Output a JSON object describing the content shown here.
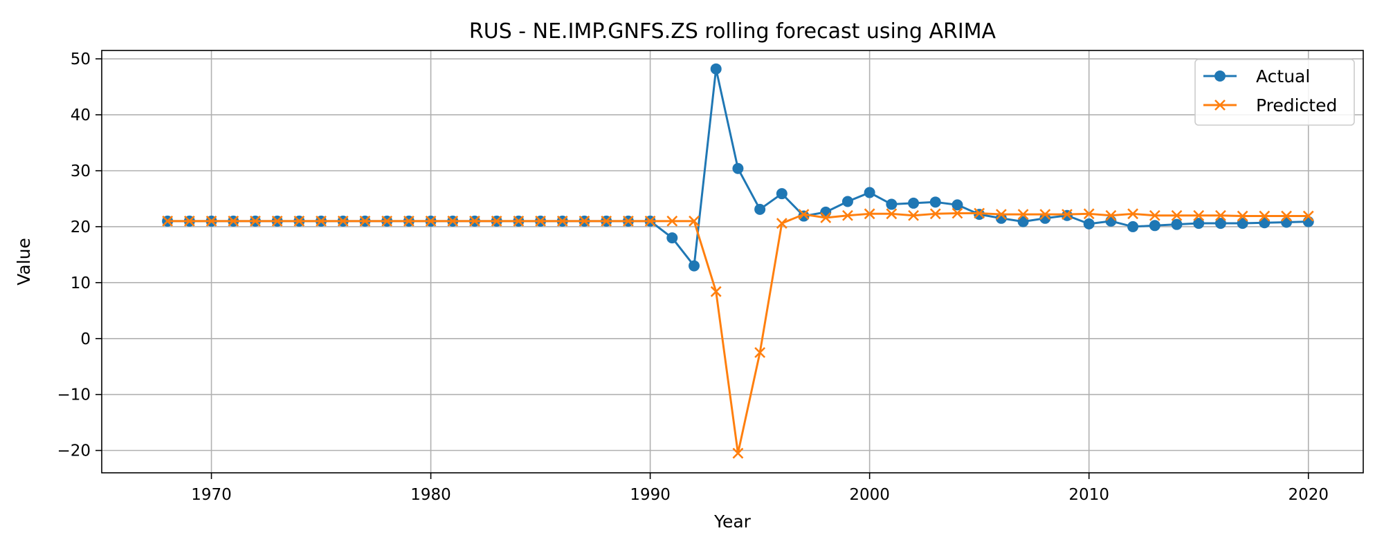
{
  "chart_data": {
    "type": "line",
    "title": "RUS - NE.IMP.GNFS.ZS rolling forecast using ARIMA",
    "xlabel": "Year",
    "ylabel": "Value",
    "xlim": [
      1965,
      2022.5
    ],
    "ylim": [
      -24,
      51.5
    ],
    "xticks": [
      1970,
      1980,
      1990,
      2000,
      2010,
      2020
    ],
    "yticks": [
      -20,
      -10,
      0,
      10,
      20,
      30,
      40,
      50
    ],
    "grid": true,
    "legend_position": "top-right",
    "x": [
      1968,
      1969,
      1970,
      1971,
      1972,
      1973,
      1974,
      1975,
      1976,
      1977,
      1978,
      1979,
      1980,
      1981,
      1982,
      1983,
      1984,
      1985,
      1986,
      1987,
      1988,
      1989,
      1990,
      1991,
      1992,
      1993,
      1994,
      1995,
      1996,
      1997,
      1998,
      1999,
      2000,
      2001,
      2002,
      2003,
      2004,
      2005,
      2006,
      2007,
      2008,
      2009,
      2010,
      2011,
      2012,
      2013,
      2014,
      2015,
      2016,
      2017,
      2018,
      2019,
      2020
    ],
    "series": [
      {
        "name": "Actual",
        "color": "#1f77b4",
        "marker": "circle",
        "values": [
          21,
          21,
          21,
          21,
          21,
          21,
          21,
          21,
          21,
          21,
          21,
          21,
          21,
          21,
          21,
          21,
          21,
          21,
          21,
          21,
          21,
          21,
          21,
          18,
          13,
          48.2,
          30.4,
          23.1,
          25.9,
          21.9,
          22.6,
          24.5,
          26.1,
          24.0,
          24.2,
          24.4,
          23.9,
          22.2,
          21.5,
          20.9,
          21.5,
          22.0,
          20.5,
          21.0,
          20.0,
          20.2,
          20.4,
          20.6,
          20.6,
          20.6,
          20.7,
          20.8,
          20.9
        ]
      },
      {
        "name": "Predicted",
        "color": "#ff7f0e",
        "marker": "x",
        "values": [
          21,
          21,
          21,
          21,
          21,
          21,
          21,
          21,
          21,
          21,
          21,
          21,
          21,
          21,
          21,
          21,
          21,
          21,
          21,
          21,
          21,
          21,
          21,
          21,
          21,
          8.4,
          -20.5,
          -2.5,
          20.6,
          22.2,
          21.6,
          22.0,
          22.3,
          22.3,
          22.0,
          22.3,
          22.4,
          22.4,
          22.2,
          22.2,
          22.2,
          22.2,
          22.3,
          22.0,
          22.3,
          22.0,
          22.0,
          22.0,
          22.0,
          21.9,
          21.9,
          21.9,
          21.9
        ]
      }
    ]
  }
}
